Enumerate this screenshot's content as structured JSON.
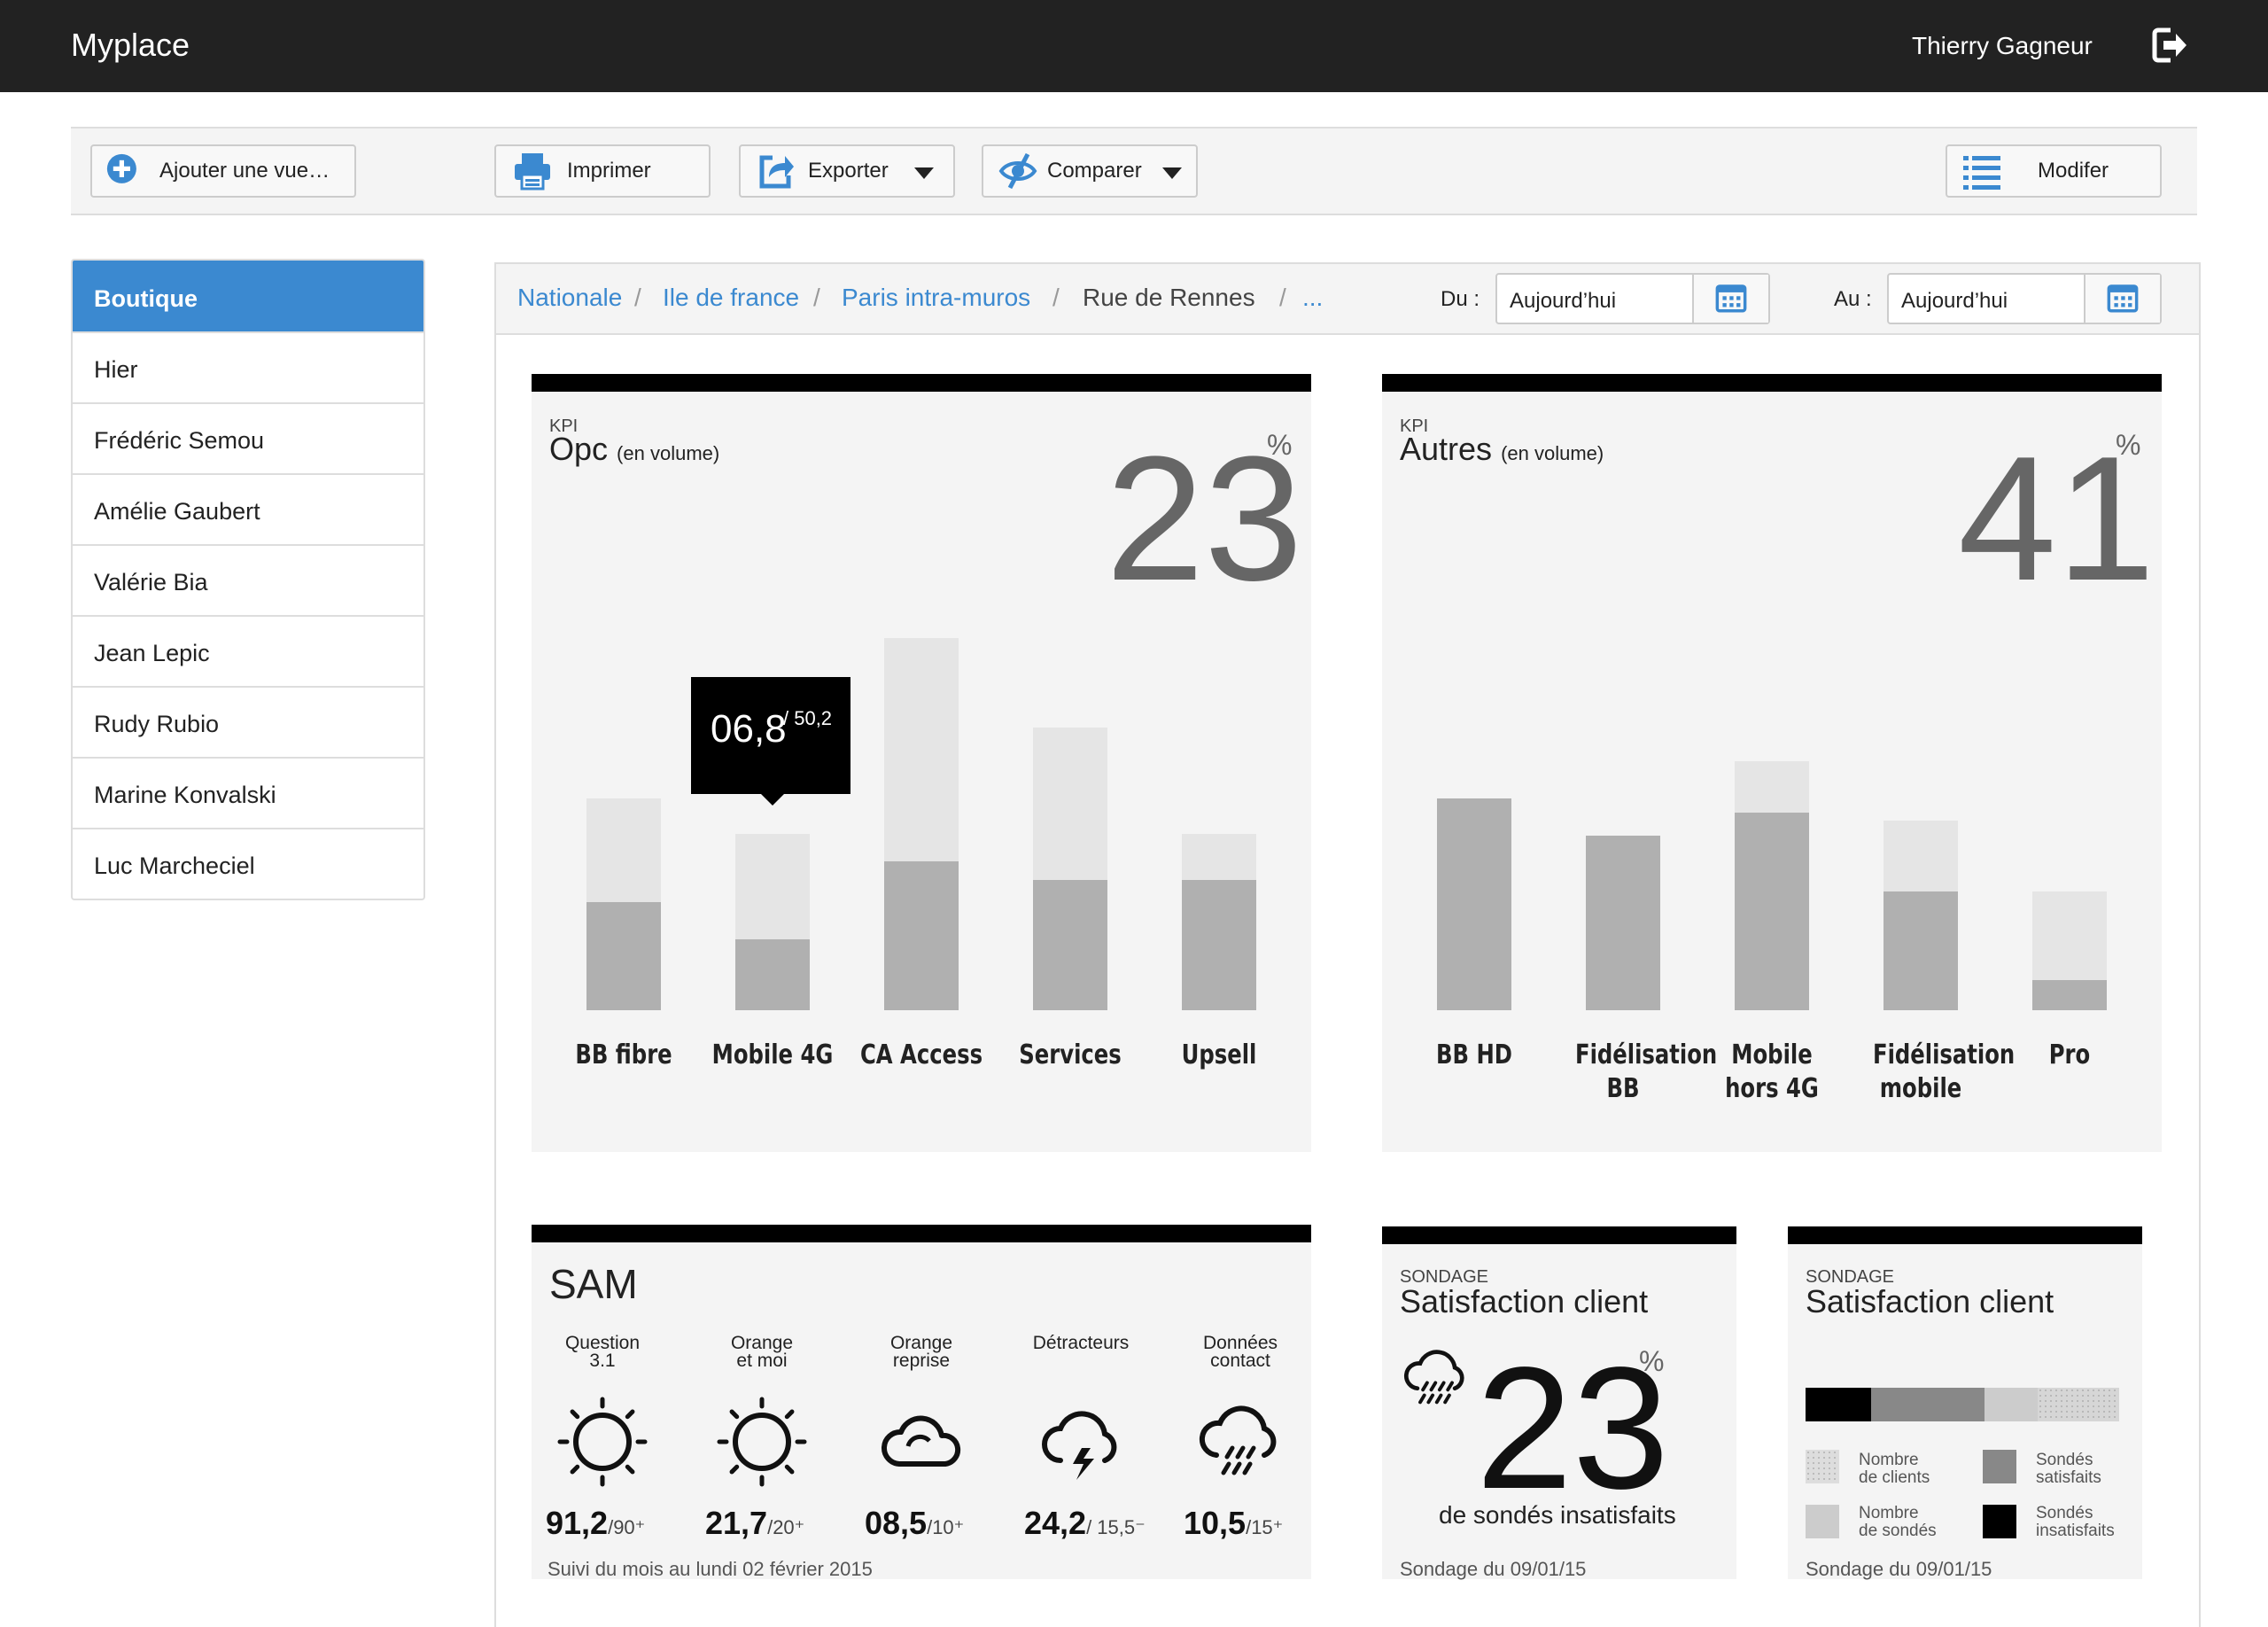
{
  "app": {
    "title": "Myplace",
    "user": "Thierry Gagneur"
  },
  "toolbar": {
    "add_view": "Ajouter une vue…",
    "print": "Imprimer",
    "export": "Exporter",
    "compare": "Comparer",
    "modify": "Modifer"
  },
  "sidebar": {
    "header": "Boutique",
    "items": [
      "Hier",
      "Frédéric Semou",
      "Amélie Gaubert",
      "Valérie Bia",
      "Jean Lepic",
      "Rudy Rubio",
      "Marine Konvalski",
      "Luc Marcheciel"
    ]
  },
  "breadcrumb": {
    "items": [
      "Nationale",
      "Ile de france",
      "Paris intra-muros",
      "Rue de Rennes",
      "..."
    ],
    "separator": "/"
  },
  "dates": {
    "from_label": "Du :",
    "from_value": "Aujourd’hui",
    "to_label": "Au :",
    "to_value": "Aujourd’hui"
  },
  "kpi1": {
    "small": "KPI",
    "title": "Opc",
    "subtitle": "(en volume)",
    "value": "23",
    "unit": "%",
    "tooltip": {
      "value": "06,8",
      "total": "/ 50,2"
    }
  },
  "kpi2": {
    "small": "KPI",
    "title": "Autres",
    "subtitle": "(en volume)",
    "value": "41",
    "unit": "%"
  },
  "chart_data": [
    {
      "type": "bar",
      "categories": [
        "BB fibre",
        "Mobile 4G",
        "CA Access",
        "Services",
        "Upsell"
      ],
      "series": [
        {
          "values": [
            29,
            19,
            40,
            35,
            35
          ]
        },
        {
          "values": [
            57,
            47.5,
            100,
            76,
            47.5
          ]
        }
      ],
      "ylim": [
        0,
        100
      ]
    },
    {
      "type": "bar",
      "categories": [
        "BB HD",
        "Fidélisation BB",
        "Mobile hors 4G",
        "Fidélisation mobile",
        "Pro"
      ],
      "series": [
        {
          "values": [
            57,
            47,
            53,
            32,
            8
          ]
        },
        {
          "values": [
            57,
            47,
            67,
            51,
            32
          ]
        }
      ],
      "ylim": [
        0,
        100
      ]
    }
  ],
  "sam": {
    "title": "SAM",
    "items": [
      {
        "label1": "Question",
        "label2": "3.1",
        "icon": "sun-icon",
        "value": "91,2",
        "target": "/90⁺"
      },
      {
        "label1": "Orange",
        "label2": "et moi",
        "icon": "sun-icon",
        "value": "21,7",
        "target": "/20⁺"
      },
      {
        "label1": "Orange",
        "label2": "reprise",
        "icon": "cloud-icon",
        "value": "08,5",
        "target": "/10⁺"
      },
      {
        "label1": "Détracteurs",
        "label2": "",
        "icon": "storm-icon",
        "value": "24,2",
        "target": "/ 15,5⁻"
      },
      {
        "label1": "Données",
        "label2": "contact",
        "icon": "rain-icon",
        "value": "10,5",
        "target": "/15⁺"
      }
    ],
    "footnote": "Suivi du mois au lundi 02 février 2015"
  },
  "survey1": {
    "small": "SONDAGE",
    "title": "Satisfaction client",
    "value": "23",
    "unit": "%",
    "desc": "de sondés insatisfaits",
    "icon": "rain-icon",
    "footnote": "Sondage du 09/01/15"
  },
  "survey2": {
    "small": "SONDAGE",
    "title": "Satisfaction client",
    "bar": [
      {
        "name": "Sondés insatisfaits",
        "fraction": 0.21,
        "color": "#000000"
      },
      {
        "name": "Sondés satisfaits",
        "fraction": 0.36,
        "color": "#888888"
      },
      {
        "name": "Nombre de sondés",
        "fraction": 0.17,
        "color": "#cccccc"
      },
      {
        "name": "Nombre de clients",
        "fraction": 0.26,
        "color": "#d6d6d6"
      }
    ],
    "legend": [
      {
        "line1": "Nombre",
        "line2": "de clients"
      },
      {
        "line1": "Sondés",
        "line2": "satisfaits"
      },
      {
        "line1": "Nombre",
        "line2": "de sondés"
      },
      {
        "line1": "Sondés",
        "line2": "insatisfaits"
      }
    ],
    "footnote": "Sondage du 09/01/15"
  }
}
